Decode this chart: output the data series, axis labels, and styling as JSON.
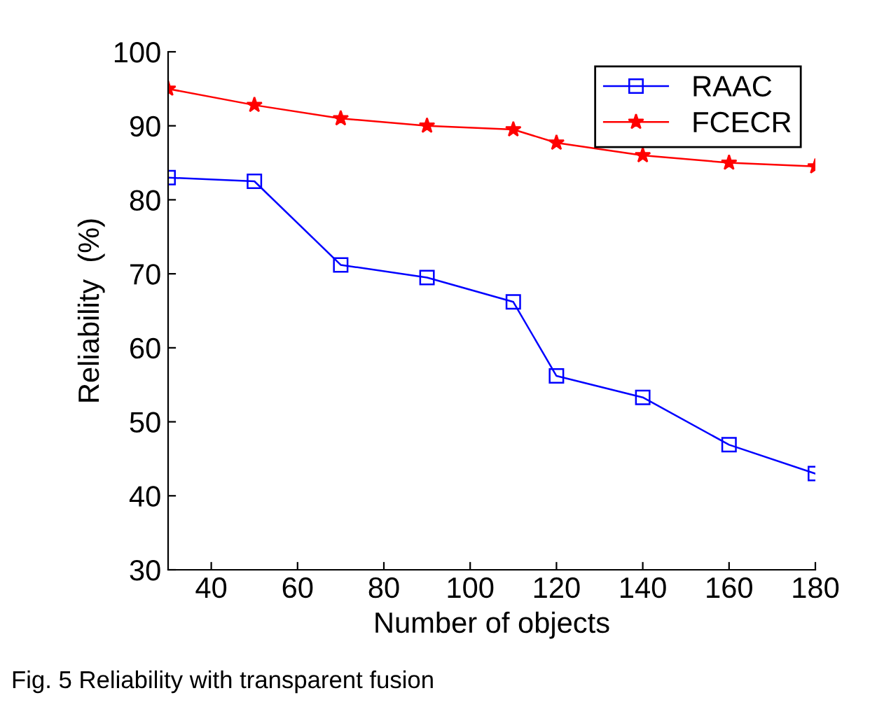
{
  "chart_data": {
    "type": "line",
    "xlabel": "Number of objects",
    "ylabel": "Reliability  (%)",
    "x": [
      30,
      50,
      70,
      90,
      110,
      120,
      140,
      160,
      180
    ],
    "series": [
      {
        "name": "RAAC",
        "color": "#0000ff",
        "marker": "square",
        "values": [
          83,
          82.5,
          71.2,
          69.5,
          66.2,
          56.2,
          53.3,
          46.9,
          43
        ]
      },
      {
        "name": "FCECR",
        "color": "#ff0000",
        "marker": "star",
        "values": [
          95,
          92.8,
          91,
          90,
          89.5,
          87.7,
          86,
          85,
          84.5
        ]
      }
    ],
    "xlim": [
      30,
      180
    ],
    "xticks": [
      40,
      60,
      80,
      100,
      120,
      140,
      160,
      180
    ],
    "ylim": [
      30,
      100
    ],
    "yticks": [
      30,
      40,
      50,
      60,
      70,
      80,
      90,
      100
    ],
    "grid": false,
    "legend": "top right",
    "annotations": [
      "Fig. 5 Reliability with transparent fusion"
    ]
  }
}
